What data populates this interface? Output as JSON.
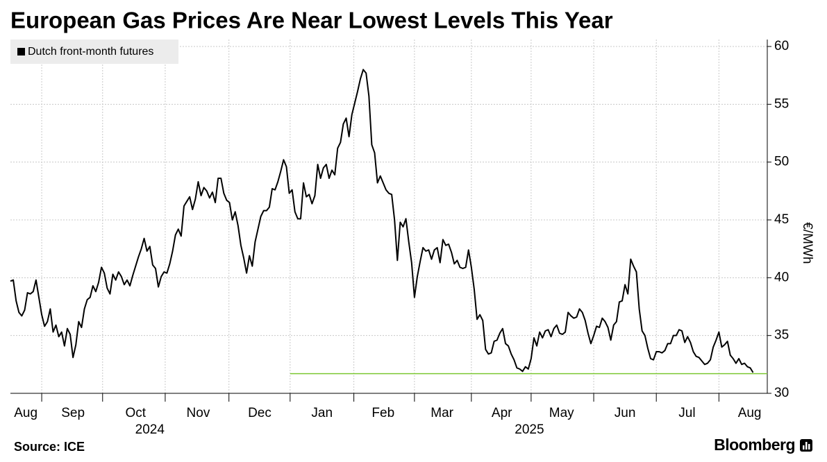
{
  "chart_data": {
    "type": "line",
    "title": "European Gas Prices Are Near Lowest Levels This Year",
    "y_label": "€/MWh",
    "source": "Source: ICE",
    "brand": "Bloomberg",
    "series": [
      {
        "name": "Dutch front-month futures",
        "color": "#000000",
        "values": [
          39.7,
          39.8,
          38,
          37,
          36.7,
          37.2,
          38.7,
          38.6,
          38.8,
          39.8,
          38.3,
          36.8,
          35.8,
          36.2,
          37.3,
          35.3,
          35.9,
          34.9,
          35.3,
          34.1,
          35.6,
          35.1,
          33.1,
          34.2,
          36.2,
          35.7,
          37.3,
          38.1,
          38.3,
          39.3,
          38.8,
          39.6,
          40.9,
          40.4,
          39.1,
          38.6,
          40.3,
          39.8,
          40.5,
          40.1,
          39.4,
          39.8,
          39.3,
          40.2,
          41,
          41.8,
          42.5,
          43.4,
          42.3,
          42.7,
          41.1,
          40.8,
          39.2,
          40.1,
          40.5,
          40.4,
          41.2,
          42.3,
          43.7,
          44.2,
          43.6,
          46.2,
          46.6,
          47,
          45.9,
          46.8,
          48.3,
          47.1,
          47.8,
          47.5,
          46.9,
          47.4,
          46.5,
          48.6,
          48.6,
          47.3,
          46.7,
          46.5,
          45,
          45.7,
          44.5,
          42.8,
          41.7,
          40.4,
          41.9,
          41,
          43.1,
          44.2,
          45.3,
          45.8,
          45.8,
          46.1,
          47.7,
          47.6,
          48.3,
          49.2,
          50.2,
          49.6,
          47.3,
          47.6,
          45.7,
          45.1,
          45.1,
          48.2,
          47,
          47.2,
          46.4,
          47.1,
          49.8,
          48.6,
          49.5,
          49.8,
          48.6,
          49.3,
          48.9,
          51.2,
          51.7,
          53.3,
          53.8,
          52.2,
          54.1,
          55.1,
          56.1,
          57.2,
          58,
          57.7,
          55.7,
          51.5,
          50.8,
          48.2,
          48.8,
          48.2,
          47.6,
          47.3,
          47.2,
          45,
          41.5,
          44.8,
          44.4,
          45.1,
          43.1,
          41.3,
          38.3,
          40.1,
          41.4,
          42.6,
          42.3,
          42.4,
          41.6,
          42.4,
          42.6,
          41.3,
          43.3,
          42.8,
          42.9,
          42.2,
          41.2,
          41.5,
          40.9,
          40.8,
          40.9,
          42.4,
          40.9,
          39,
          36.4,
          36.8,
          36.3,
          33.8,
          33.4,
          33.5,
          34.5,
          34.6,
          35.2,
          35.6,
          34.3,
          34.1,
          33.4,
          32.9,
          32.2,
          32.1,
          31.9,
          32.3,
          32.1,
          33,
          34.8,
          34.1,
          35.3,
          34.8,
          35.4,
          35.5,
          34.9,
          35.6,
          35.9,
          35.2,
          35.1,
          35.3,
          37,
          36.7,
          36.5,
          36.6,
          37.3,
          37,
          36.3,
          35.2,
          34.3,
          35,
          35.8,
          35.7,
          36.5,
          36.2,
          35.7,
          34.6,
          35.9,
          36.2,
          37.9,
          38,
          39.4,
          38.6,
          41.6,
          41,
          40.5,
          37.3,
          35.4,
          35,
          33.9,
          33,
          32.9,
          33.6,
          33.6,
          33.5,
          33.7,
          34.3,
          34.3,
          35,
          35,
          35.5,
          35.4,
          34.4,
          34.9,
          34.4,
          33.6,
          33.2,
          33.1,
          32.8,
          32.5,
          32.6,
          32.9,
          34,
          34.6,
          35.3,
          34,
          34.2,
          34.5,
          33.3,
          33,
          32.6,
          33,
          32.5,
          32.6,
          32.3,
          32.2,
          31.8
        ]
      }
    ],
    "xlim": [
      0,
      266
    ],
    "xticks": [
      11,
      32.4,
      54.4,
      76.8,
      98.3,
      120.7,
      142,
      162,
      183,
      205,
      227,
      249
    ],
    "xtick_labels": [
      {
        "value": 5.4,
        "label": "Aug"
      },
      {
        "value": 22,
        "label": "Sep"
      },
      {
        "value": 44,
        "label": "Oct"
      },
      {
        "value": 66,
        "label": "Nov"
      },
      {
        "value": 87.6,
        "label": "Dec"
      },
      {
        "value": 109.5,
        "label": "Jan"
      },
      {
        "value": 131,
        "label": "Feb"
      },
      {
        "value": 151.7,
        "label": "Mar"
      },
      {
        "value": 172.7,
        "label": "Apr"
      },
      {
        "value": 193.7,
        "label": "May"
      },
      {
        "value": 216,
        "label": "Jun"
      },
      {
        "value": 237.8,
        "label": "Jul"
      },
      {
        "value": 259.8,
        "label": "Aug"
      }
    ],
    "year_labels": [
      {
        "value": 49,
        "label": "2024"
      },
      {
        "value": 182.4,
        "label": "2025"
      }
    ],
    "ylim": [
      30,
      60
    ],
    "yticks": [
      30,
      35,
      40,
      45,
      50,
      55,
      60
    ],
    "grid": true,
    "hline": {
      "y": 31.7,
      "x_start": 98.3,
      "color": "#7cc832"
    },
    "legend": "top-left"
  }
}
